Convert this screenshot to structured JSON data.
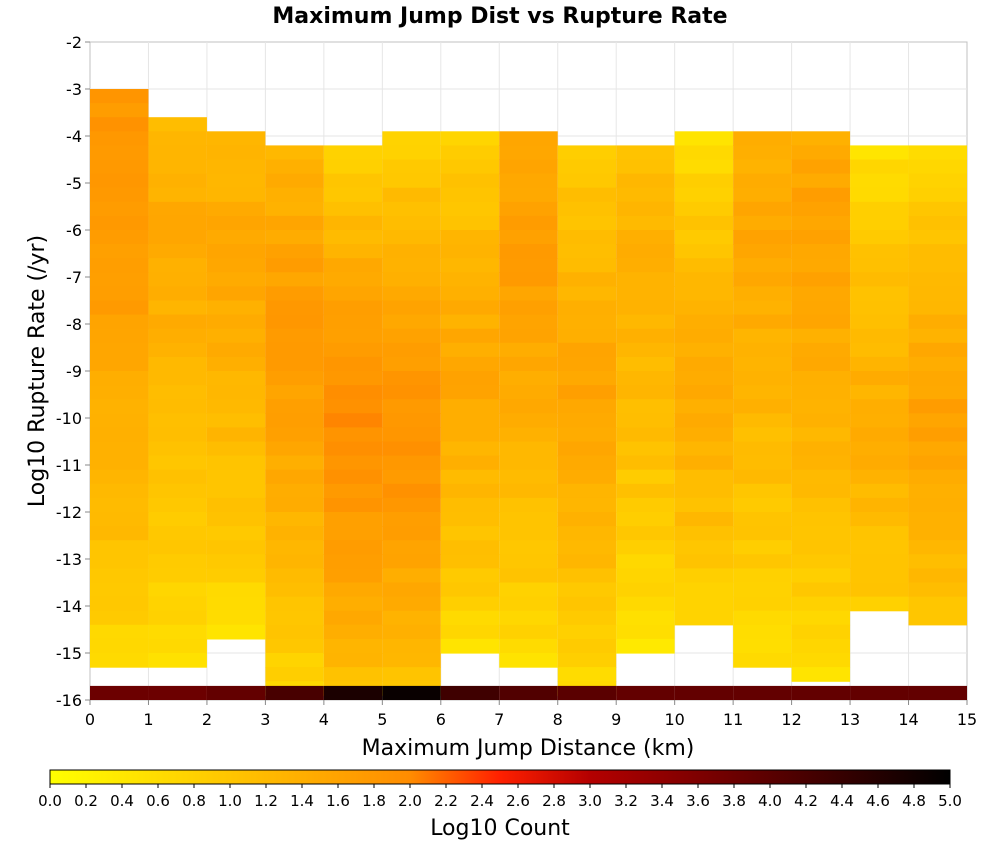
{
  "chart_data": {
    "type": "heatmap",
    "title": "Maximum Jump Dist vs Rupture Rate",
    "xlabel": "Maximum Jump Distance (km)",
    "ylabel": "Log10 Rupture Rate (/yr)",
    "xlim": [
      0,
      15
    ],
    "ylim": [
      -16,
      -2
    ],
    "x_ticks": [
      "0",
      "1",
      "2",
      "3",
      "4",
      "5",
      "6",
      "7",
      "8",
      "9",
      "10",
      "11",
      "12",
      "13",
      "14",
      "15"
    ],
    "y_ticks": [
      "-2",
      "-3",
      "-4",
      "-5",
      "-6",
      "-7",
      "-8",
      "-9",
      "-10",
      "-11",
      "-12",
      "-13",
      "-14",
      "-15",
      "-16"
    ],
    "x_bin_width": 1,
    "y_bin_width": 0.3,
    "colorbar": {
      "label": "Log10 Count",
      "range": [
        0.0,
        5.0
      ],
      "ticks": [
        "0.0",
        "0.2",
        "0.4",
        "0.6",
        "0.8",
        "1.0",
        "1.2",
        "1.4",
        "1.6",
        "1.8",
        "2.0",
        "2.2",
        "2.4",
        "2.6",
        "2.8",
        "3.0",
        "3.2",
        "3.4",
        "3.6",
        "3.8",
        "4.0",
        "4.2",
        "4.4",
        "4.6",
        "4.8",
        "5.0"
      ],
      "colors": [
        "#ffff00",
        "#ff8c00",
        "#ff2000",
        "#b40000",
        "#000000"
      ]
    },
    "columns": [
      {
        "x": 0,
        "y_top": -3.0,
        "y_bottom": -15.2,
        "peak_y": -5.0,
        "peak": 1.85,
        "edge": 0.35,
        "bottom_row": 3.8
      },
      {
        "x": 1,
        "y_top": -3.6,
        "y_bottom": -15.3,
        "peak_y": -6.5,
        "peak": 1.45,
        "edge": 0.25,
        "bottom_row": 3.8
      },
      {
        "x": 2,
        "y_top": -3.9,
        "y_bottom": -14.7,
        "peak_y": -7.0,
        "peak": 1.5,
        "edge": 0.3,
        "bottom_row": 3.9
      },
      {
        "x": 3,
        "y_top": -4.2,
        "y_bottom": -15.9,
        "peak_y": -8.5,
        "peak": 1.75,
        "edge": 0.35,
        "bottom_row": 4.2
      },
      {
        "x": 4,
        "y_top": -4.2,
        "y_bottom": -15.9,
        "peak_y": -10.5,
        "peak": 1.95,
        "edge": 0.45,
        "bottom_row": 4.7
      },
      {
        "x": 5,
        "y_top": -3.9,
        "y_bottom": -15.9,
        "peak_y": -10.5,
        "peak": 1.9,
        "edge": 0.4,
        "bottom_row": 4.9
      },
      {
        "x": 6,
        "y_top": -3.9,
        "y_bottom": -15.0,
        "peak_y": -9.0,
        "peak": 1.5,
        "edge": 0.3,
        "bottom_row": 4.3
      },
      {
        "x": 7,
        "y_top": -3.9,
        "y_bottom": -15.2,
        "peak_y": -6.5,
        "peak": 1.7,
        "edge": 0.3,
        "bottom_row": 4.1
      },
      {
        "x": 8,
        "y_top": -4.2,
        "y_bottom": -15.9,
        "peak_y": -9.5,
        "peak": 1.6,
        "edge": 0.25,
        "bottom_row": 4.0
      },
      {
        "x": 9,
        "y_top": -4.2,
        "y_bottom": -15.0,
        "peak_y": -7.0,
        "peak": 1.35,
        "edge": 0.25,
        "bottom_row": 3.9
      },
      {
        "x": 10,
        "y_top": -3.9,
        "y_bottom": -14.4,
        "peak_y": -9.5,
        "peak": 1.45,
        "edge": 0.25,
        "bottom_row": 3.9
      },
      {
        "x": 11,
        "y_top": -3.9,
        "y_bottom": -15.3,
        "peak_y": -6.5,
        "peak": 1.5,
        "edge": 0.3,
        "bottom_row": 3.9
      },
      {
        "x": 12,
        "y_top": -3.9,
        "y_bottom": -15.6,
        "peak_y": -6.0,
        "peak": 1.6,
        "edge": 0.3,
        "bottom_row": 3.9
      },
      {
        "x": 13,
        "y_top": -4.2,
        "y_bottom": -14.1,
        "peak_y": -10.0,
        "peak": 1.4,
        "edge": 0.25,
        "bottom_row": 3.9
      },
      {
        "x": 14,
        "y_top": -4.2,
        "y_bottom": -14.4,
        "peak_y": -10.0,
        "peak": 1.65,
        "edge": 0.3,
        "bottom_row": 3.9
      }
    ]
  }
}
